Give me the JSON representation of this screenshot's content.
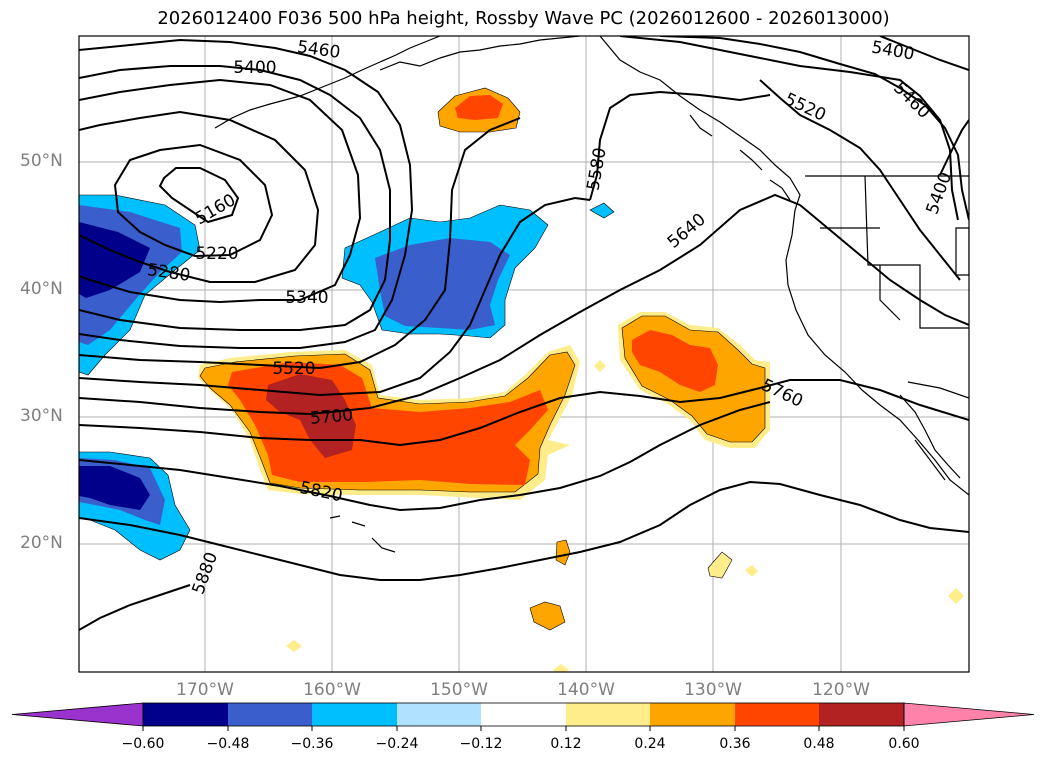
{
  "title": "2026012400 F036 500 hPa height, Rossby Wave PC (2026012600 - 2026013000)",
  "lat_labels": [
    "50°N",
    "40°N",
    "30°N",
    "20°N"
  ],
  "lon_labels": [
    "170°W",
    "160°W",
    "150°W",
    "140°W",
    "130°W",
    "120°W"
  ],
  "contour_labels": [
    "5460",
    "5400",
    "5400",
    "5520",
    "5460",
    "5400",
    "5580",
    "5160",
    "5220",
    "5280",
    "5340",
    "5640",
    "5520",
    "5700",
    "5760",
    "5820",
    "5880"
  ],
  "colorbar": {
    "ticks": [
      "−0.60",
      "−0.48",
      "−0.36",
      "−0.24",
      "−0.12",
      "0.12",
      "0.24",
      "0.36",
      "0.48",
      "0.60"
    ],
    "colors": [
      "#9a32cd",
      "#00008b",
      "#3a5fcd",
      "#00bfff",
      "#b0e2ff",
      "#ffffff",
      "#ffec8b",
      "#ffa500",
      "#ff4500",
      "#b22222",
      "#ff82ab"
    ]
  },
  "shading_colors": {
    "neg_light": "#b0e2ff",
    "neg_mid": "#00bfff",
    "neg_strong": "#3a5fcd",
    "neg_max": "#00008b",
    "pos_light": "#ffec8b",
    "pos_mid": "#ffa500",
    "pos_strong": "#ff4500",
    "pos_max": "#b22222"
  }
}
